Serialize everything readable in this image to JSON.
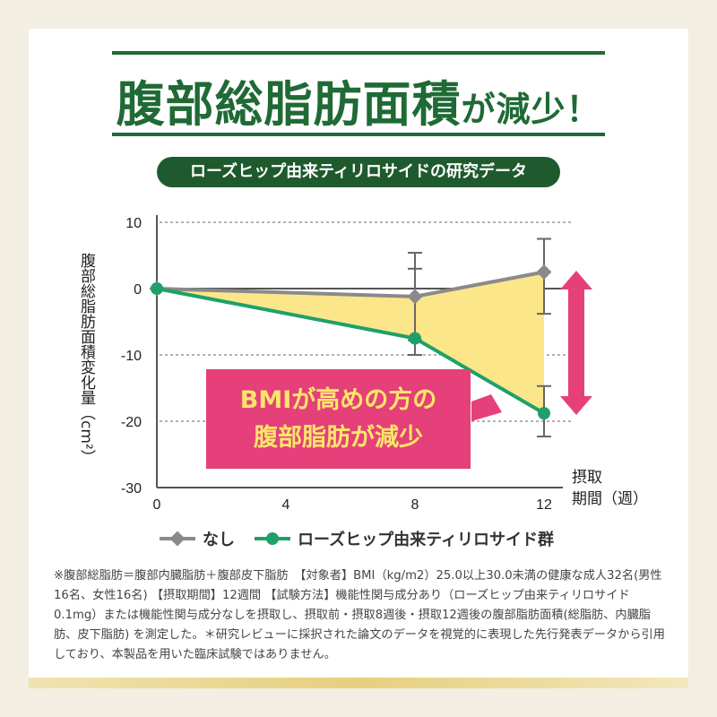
{
  "title": {
    "main": "腹部総脂肪面積",
    "suffix": "が減少！"
  },
  "subtitle": "ローズヒップ由来ティリロサイドの研究データ",
  "callout": {
    "line1": "BMIが高めの方の",
    "line2": "腹部脂肪が減少"
  },
  "footnote": "※腹部総脂肪＝腹部内臓脂肪＋腹部皮下脂肪　【対象者】BMI（kg/m2）25.0以上30.0未満の健康な成人32名(男性16名、女性16名) 【摂取期間】12週間 【試験方法】機能性関与成分あり（ローズヒップ由来ティリロサイド0.1mg）または機能性関与成分なしを摂取し、摂取前・摂取8週後・摂取12週後の腹部脂肪面積(総脂肪、内臓脂肪、皮下脂肪) を測定した。＊研究レビューに採択された論文のデータを視覚的に表現した先行発表データから引用しており、本製品を用いた臨床試験ではありません。",
  "colors": {
    "green": "#1fa06a",
    "gray": "#8a8a8a",
    "fill": "#fbe68a",
    "accent": "#e5407a",
    "brand": "#1f6a35"
  },
  "chart_data": {
    "type": "line",
    "ylabel": "腹部総脂肪面積変化量（cm²）",
    "xlabel_line1": "摂取",
    "xlabel_line2": "期間（週）",
    "x": [
      0,
      8,
      12
    ],
    "xticks": [
      "0",
      "4",
      "8",
      "12"
    ],
    "yticks": [
      "10",
      "0",
      "-10",
      "-20",
      "-30"
    ],
    "xlim": [
      0,
      12
    ],
    "ylim": [
      -30,
      10
    ],
    "grid": "dashed horizontal",
    "legend": "bottom",
    "series": [
      {
        "name": "なし",
        "marker": "diamond",
        "color": "#8a8a8a",
        "values": [
          0,
          -1.2,
          2.5
        ],
        "err_low": [
          0,
          -7.8,
          -3.8
        ],
        "err_high": [
          0,
          5.4,
          7.5
        ]
      },
      {
        "name": "ローズヒップ由来ティリロサイド群",
        "marker": "circle",
        "color": "#1fa06a",
        "values": [
          0,
          -7.5,
          -18.8
        ],
        "err_low": [
          0,
          -10,
          -22.3
        ],
        "err_high": [
          0,
          3,
          -14.7
        ]
      }
    ]
  }
}
